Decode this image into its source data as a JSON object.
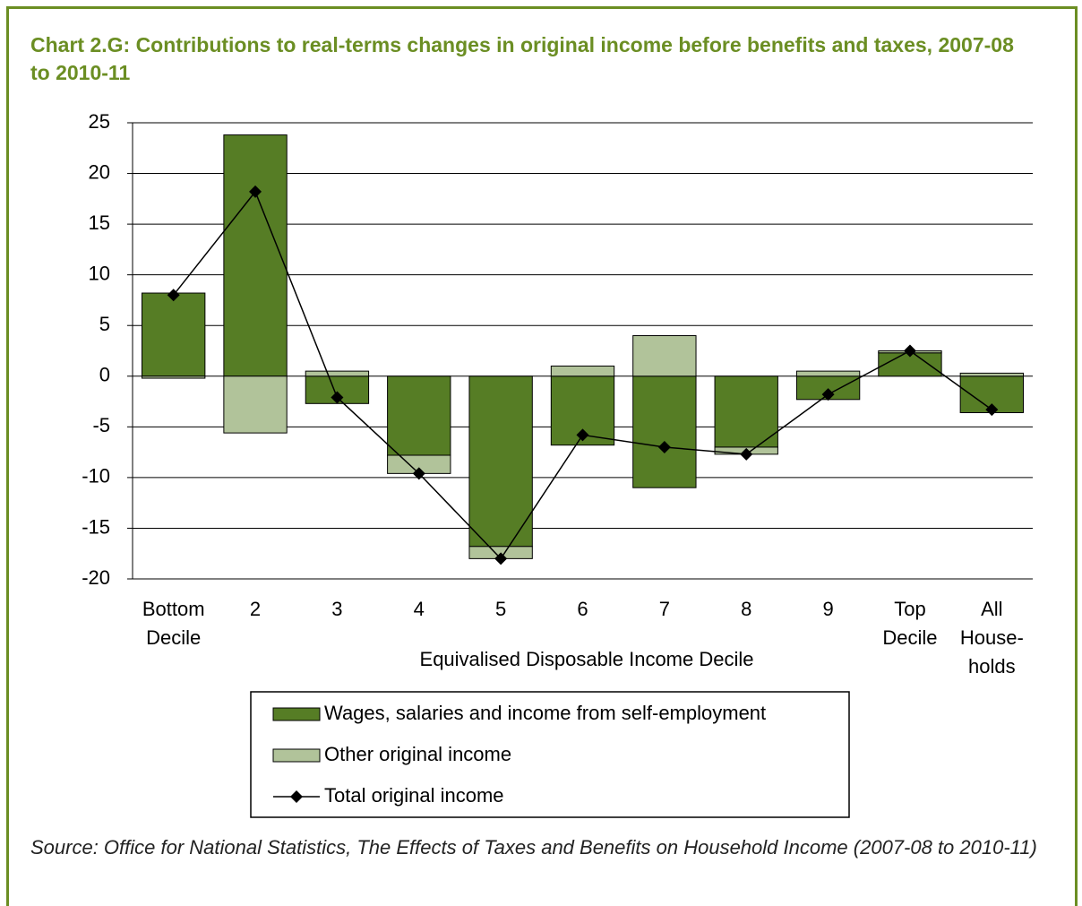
{
  "chart_data": {
    "type": "bar",
    "title": "Chart 2.G: Contributions to real-terms changes in original income before benefits and taxes, 2007-08 to 2010-11",
    "x_label": "Equivalised Disposable Income Decile",
    "source": "Source: Office for National Statistics, The Effects of Taxes and Benefits on Household Income (2007-08 to 2010-11)",
    "categories": [
      [
        "Bottom",
        "Decile"
      ],
      [
        "2"
      ],
      [
        "3"
      ],
      [
        "4"
      ],
      [
        "5"
      ],
      [
        "6"
      ],
      [
        "7"
      ],
      [
        "8"
      ],
      [
        "9"
      ],
      [
        "Top",
        "Decile"
      ],
      [
        "All",
        "House-",
        "holds"
      ]
    ],
    "series": [
      {
        "name": "Wages, salaries and income from self-employment",
        "type": "bar",
        "color": "#567d25",
        "values": [
          8.2,
          23.8,
          -2.7,
          -7.8,
          -16.8,
          -6.8,
          -11.0,
          -7.0,
          -2.3,
          2.3,
          -3.6
        ]
      },
      {
        "name": "Other original income",
        "type": "bar",
        "color": "#b1c39a",
        "values": [
          -0.2,
          -5.6,
          0.5,
          -1.8,
          -1.2,
          1.0,
          4.0,
          -0.7,
          0.5,
          0.2,
          0.3
        ]
      },
      {
        "name": "Total original income",
        "type": "line",
        "color": "#000000",
        "values": [
          8.0,
          18.2,
          -2.1,
          -9.6,
          -18.0,
          -5.8,
          -7.0,
          -7.7,
          -1.8,
          2.5,
          -3.3
        ]
      }
    ],
    "ylim": [
      -20,
      25
    ],
    "yticks": [
      -20,
      -15,
      -10,
      -5,
      0,
      5,
      10,
      15,
      20,
      25
    ],
    "grid": true,
    "stacked": true
  }
}
